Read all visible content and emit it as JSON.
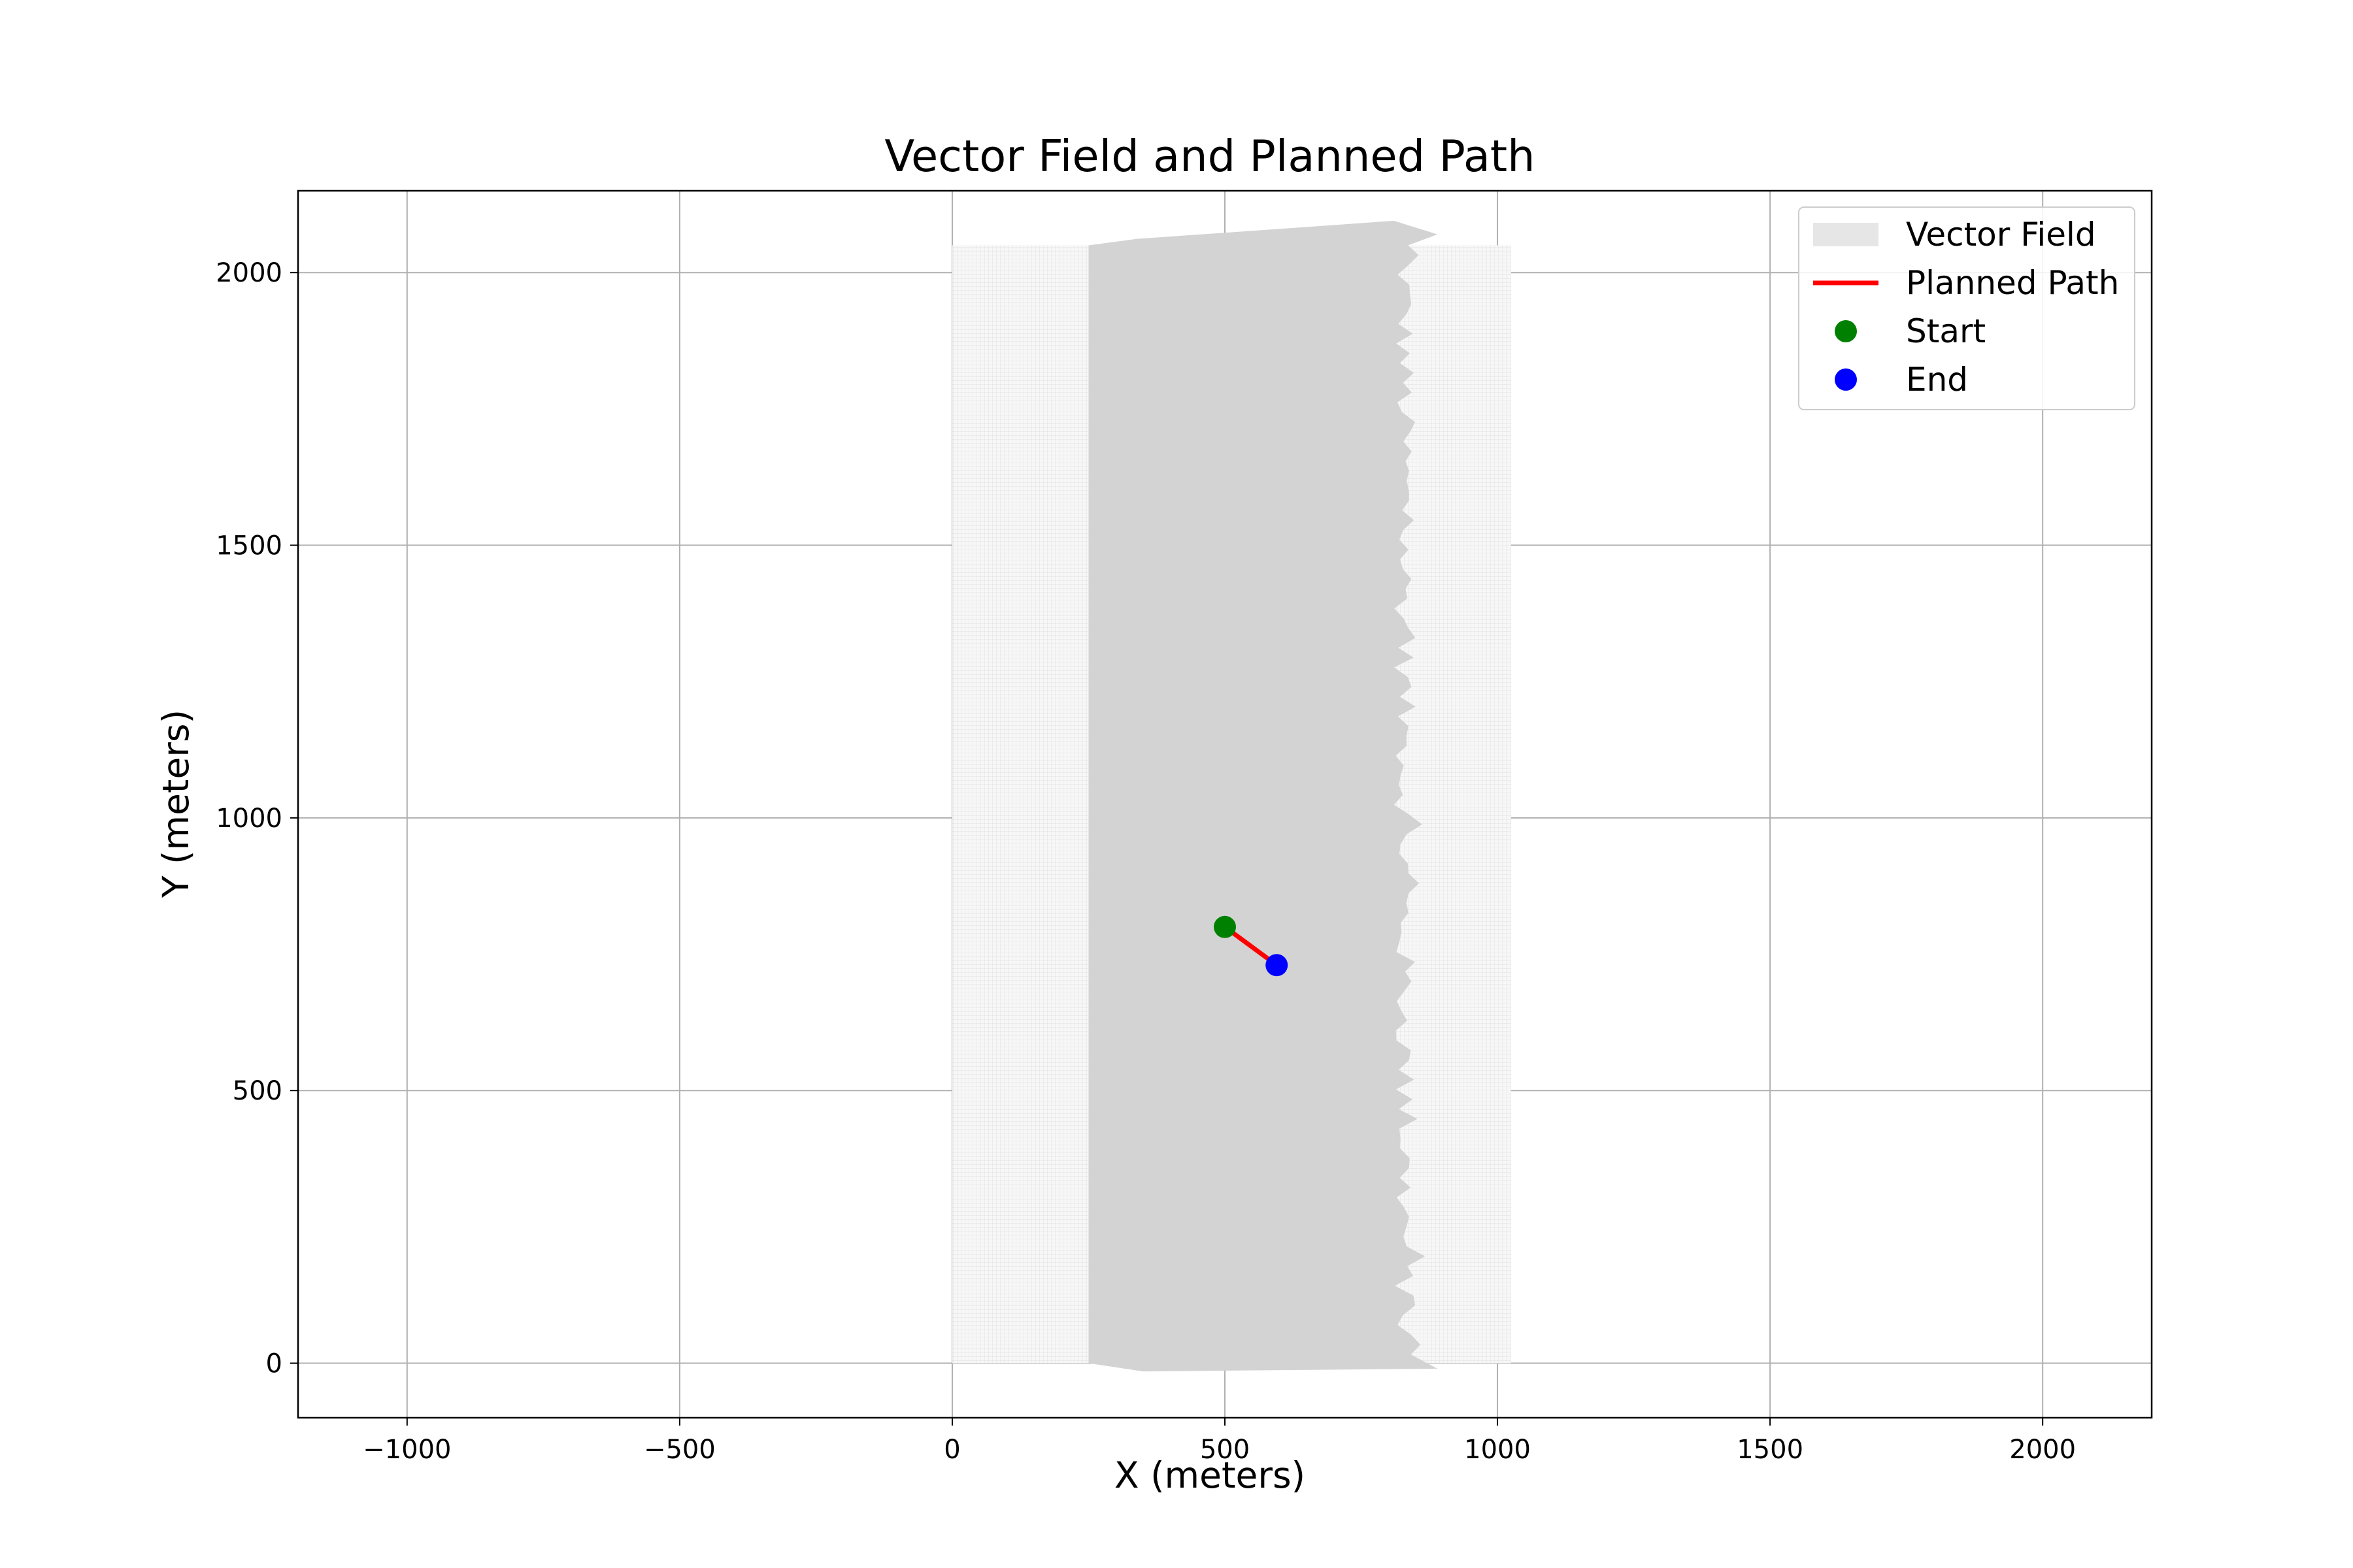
{
  "chart_data": {
    "type": "line",
    "title": "Vector Field and Planned Path",
    "xlabel": "X (meters)",
    "ylabel": "Y (meters)",
    "xlim": [
      -1200,
      2200
    ],
    "ylim": [
      -100,
      2150
    ],
    "xticks": [
      -1000,
      -500,
      0,
      500,
      1000,
      1500,
      2000
    ],
    "xtick_labels": [
      "−1000",
      "−500",
      "0",
      "500",
      "1000",
      "1500",
      "2000"
    ],
    "yticks": [
      0,
      500,
      1000,
      1500,
      2000
    ],
    "ytick_labels": [
      "0",
      "500",
      "1000",
      "1500",
      "2000"
    ],
    "grid": true,
    "legend_position": "top-right",
    "vector_field": {
      "name": "Vector Field",
      "color": "#d3d3d3",
      "grid_x_range": [
        0,
        1025
      ],
      "grid_y_range": [
        0,
        2050
      ],
      "dense_band_x_range": [
        250,
        850
      ]
    },
    "series": [
      {
        "name": "Planned Path",
        "color": "#ff0000",
        "x": [
          500,
          595
        ],
        "y": [
          800,
          730
        ]
      }
    ],
    "points": [
      {
        "name": "Start",
        "color": "#008000",
        "x": 500,
        "y": 800
      },
      {
        "name": "End",
        "color": "#0000ff",
        "x": 595,
        "y": 730
      }
    ],
    "legend": [
      {
        "label": "Vector Field",
        "kind": "patch",
        "color": "#e6e6e6"
      },
      {
        "label": "Planned Path",
        "kind": "line",
        "color": "#ff0000"
      },
      {
        "label": "Start",
        "kind": "marker",
        "color": "#008000"
      },
      {
        "label": "End",
        "kind": "marker",
        "color": "#0000ff"
      }
    ]
  }
}
